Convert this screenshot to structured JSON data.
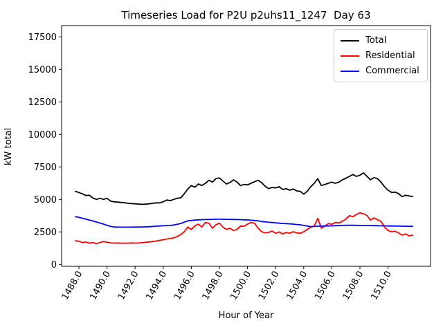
{
  "figure": {
    "title": "Timeseries Load for P2U p2uhs11_1247  Day 63",
    "xlabel": "Hour of Year",
    "ylabel": "kW total",
    "background": "#ffffff",
    "spine_color": "#000000"
  },
  "legend": {
    "position": "upper right",
    "items": [
      {
        "label": "Total",
        "color": "#000000"
      },
      {
        "label": "Residential",
        "color": "#ff0000"
      },
      {
        "label": "Commercial",
        "color": "#0000ff"
      }
    ]
  },
  "chart_data": {
    "type": "line",
    "title": "Timeseries Load for P2U p2uhs11_1247  Day 63",
    "xlabel": "Hour of Year",
    "ylabel": "kW total",
    "grid": false,
    "legend_position": "upper right",
    "xlim": [
      1486.8,
      1513.05
    ],
    "ylim": [
      -150,
      18370
    ],
    "x_tick_labels": [
      "1488.0",
      "1490.0",
      "1492.0",
      "1494.0",
      "1496.0",
      "1498.0",
      "1500.0",
      "1502.0",
      "1504.0",
      "1506.0",
      "1508.0",
      "1510.0"
    ],
    "x_ticks": [
      1488,
      1490,
      1492,
      1494,
      1496,
      1498,
      1500,
      1502,
      1504,
      1506,
      1508,
      1510
    ],
    "y_tick_labels": [
      "0",
      "2500",
      "5000",
      "7500",
      "10000",
      "12500",
      "15000",
      "17500"
    ],
    "y_ticks": [
      0,
      2500,
      5000,
      7500,
      10000,
      12500,
      15000,
      17500
    ],
    "x_start": 1487.75,
    "x_step": 0.25,
    "n_points": 97,
    "series": [
      {
        "name": "Total",
        "color": "#000000",
        "values": [
          5620,
          5530,
          5430,
          5300,
          5320,
          5100,
          5000,
          5085,
          5000,
          5085,
          4870,
          4820,
          4790,
          4766,
          4740,
          4700,
          4680,
          4660,
          4640,
          4620,
          4640,
          4660,
          4700,
          4734,
          4730,
          4820,
          4950,
          4910,
          5000,
          5085,
          5123,
          5441,
          5798,
          6063,
          5936,
          6186,
          6063,
          6240,
          6468,
          6329,
          6595,
          6648,
          6415,
          6186,
          6292,
          6505,
          6329,
          6063,
          6148,
          6116,
          6240,
          6362,
          6468,
          6292,
          6010,
          5830,
          5920,
          5883,
          5973,
          5760,
          5830,
          5707,
          5798,
          5653,
          5617,
          5404,
          5620,
          5973,
          6240,
          6595,
          6063,
          6148,
          6240,
          6329,
          6240,
          6329,
          6505,
          6628,
          6771,
          6914,
          6771,
          6861,
          7037,
          6771,
          6505,
          6681,
          6595,
          6329,
          5973,
          5707,
          5532,
          5564,
          5441,
          5212,
          5319,
          5266,
          5212
        ]
      },
      {
        "name": "Residential",
        "color": "#ff0000",
        "values": [
          1820,
          1780,
          1680,
          1720,
          1640,
          1680,
          1600,
          1680,
          1760,
          1700,
          1660,
          1640,
          1650,
          1640,
          1630,
          1640,
          1650,
          1640,
          1650,
          1670,
          1700,
          1730,
          1760,
          1800,
          1850,
          1900,
          1950,
          1990,
          2050,
          2150,
          2300,
          2516,
          2872,
          2691,
          2958,
          3101,
          2872,
          3224,
          3170,
          2782,
          3048,
          3170,
          2872,
          2691,
          2782,
          2606,
          2691,
          2958,
          2925,
          3101,
          3224,
          3170,
          2782,
          2516,
          2427,
          2462,
          2569,
          2391,
          2500,
          2338,
          2462,
          2391,
          2516,
          2427,
          2391,
          2516,
          2691,
          2872,
          2958,
          3543,
          2782,
          2958,
          3138,
          3085,
          3224,
          3191,
          3314,
          3489,
          3755,
          3670,
          3846,
          3968,
          3899,
          3755,
          3404,
          3580,
          3436,
          3314,
          2872,
          2606,
          2516,
          2553,
          2427,
          2250,
          2338,
          2196,
          2250
        ]
      },
      {
        "name": "Commercial",
        "color": "#0000ff",
        "values": [
          3670,
          3620,
          3550,
          3480,
          3410,
          3340,
          3260,
          3180,
          3100,
          3010,
          2930,
          2880,
          2870,
          2865,
          2865,
          2868,
          2870,
          2872,
          2875,
          2880,
          2890,
          2900,
          2920,
          2940,
          2958,
          2975,
          2990,
          3000,
          3030,
          3085,
          3150,
          3250,
          3350,
          3380,
          3410,
          3430,
          3440,
          3450,
          3460,
          3470,
          3480,
          3480,
          3475,
          3470,
          3465,
          3460,
          3450,
          3440,
          3430,
          3420,
          3400,
          3380,
          3350,
          3300,
          3277,
          3240,
          3224,
          3200,
          3170,
          3150,
          3138,
          3120,
          3101,
          3070,
          3048,
          3000,
          2950,
          2900,
          2920,
          2940,
          2950,
          2958,
          2960,
          2970,
          2980,
          2990,
          3000,
          3010,
          3010,
          3010,
          3005,
          3000,
          3000,
          2995,
          2990,
          2985,
          2980,
          2975,
          2970,
          2960,
          2955,
          2950,
          2945,
          2940,
          2935,
          2930,
          2925
        ]
      }
    ]
  }
}
